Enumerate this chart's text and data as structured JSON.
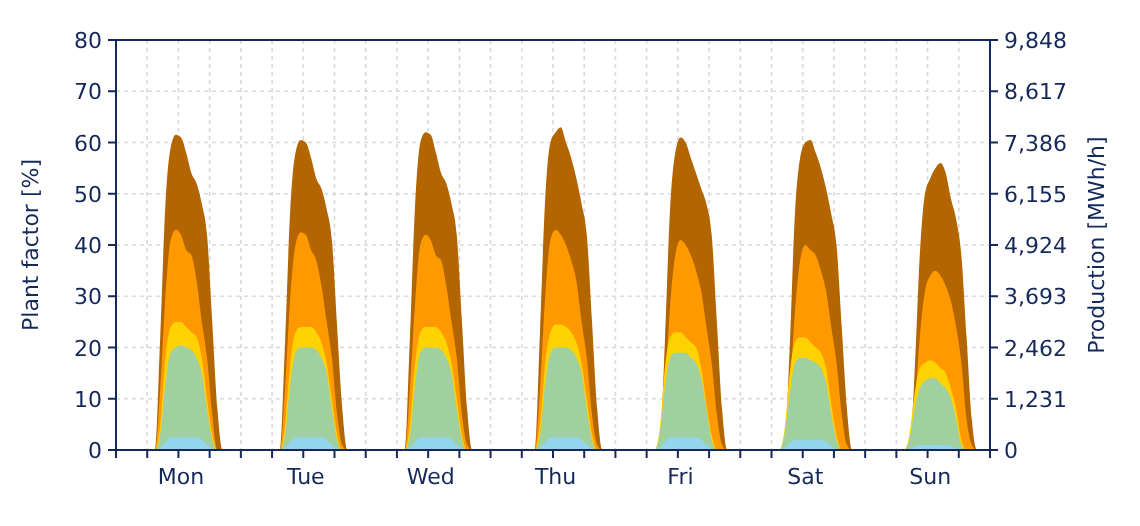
{
  "chart_data": {
    "type": "area",
    "ylabel": "Plant factor [%]",
    "y2label": "Production [MWh/h]",
    "categories": [
      null,
      null,
      null,
      null,
      null,
      null,
      null,
      null,
      null,
      null,
      null,
      null,
      "Mon",
      null,
      null,
      null,
      null,
      null,
      null,
      null,
      null,
      null,
      null,
      null,
      null,
      null,
      null,
      null,
      null,
      null,
      null,
      null,
      null,
      null,
      null,
      null,
      "Tue",
      null,
      null,
      null,
      null,
      null,
      null,
      null,
      null,
      null,
      null,
      null,
      null,
      null,
      null,
      null,
      null,
      null,
      null,
      null,
      null,
      null,
      null,
      null,
      "Wed",
      null,
      null,
      null,
      null,
      null,
      null,
      null,
      null,
      null,
      null,
      null,
      null,
      null,
      null,
      null,
      null,
      null,
      null,
      null,
      null,
      null,
      null,
      null,
      "Thu",
      null,
      null,
      null,
      null,
      null,
      null,
      null,
      null,
      null,
      null,
      null,
      null,
      null,
      null,
      null,
      null,
      null,
      null,
      null,
      null,
      null,
      null,
      null,
      "Fri",
      null,
      null,
      null,
      null,
      null,
      null,
      null,
      null,
      null,
      null,
      null,
      null,
      null,
      null,
      null,
      null,
      null,
      null,
      null,
      null,
      null,
      null,
      null,
      "Sat",
      null,
      null,
      null,
      null,
      null,
      null,
      null,
      null,
      null,
      null,
      null,
      null,
      null,
      null,
      null,
      null,
      null,
      null,
      null,
      null,
      null,
      null,
      null,
      "Sun",
      null,
      null,
      null,
      null,
      null,
      null,
      null,
      null,
      null,
      null,
      null
    ],
    "ylim": [
      0,
      80
    ],
    "yticks": [
      0,
      10,
      20,
      30,
      40,
      50,
      60,
      70,
      80
    ],
    "y2lim": [
      0,
      9848
    ],
    "y2ticks": [
      0,
      {
        "value": 1231,
        "label": "1,231"
      },
      {
        "value": 2462,
        "label": "2,462"
      },
      {
        "value": 3693,
        "label": "3,693"
      },
      {
        "value": 4924,
        "label": "4,924"
      },
      {
        "value": 6155,
        "label": "6,155"
      },
      {
        "value": 7386,
        "label": "7,386"
      },
      {
        "value": 8617,
        "label": "8,617"
      },
      {
        "value": 9848,
        "label": "9,848"
      }
    ],
    "grid": true,
    "series": [
      {
        "color": "#b36500",
        "values": [
          0,
          0,
          0,
          0,
          0,
          0,
          0,
          0,
          22,
          48,
          59,
          61.5,
          61,
          58,
          54,
          52,
          48,
          42,
          25,
          8,
          0,
          0,
          0,
          0,
          0,
          0,
          0,
          0,
          0,
          0,
          0,
          0,
          21,
          47,
          58,
          60.5,
          60,
          57,
          53,
          51,
          47,
          41,
          24,
          8,
          0,
          0,
          0,
          0,
          0,
          0,
          0,
          0,
          0,
          0,
          0,
          0,
          22,
          48,
          60,
          62,
          61.5,
          58,
          54,
          52,
          48,
          42,
          25,
          8,
          0,
          0,
          0,
          0,
          0,
          0,
          0,
          0,
          0,
          0,
          0,
          0,
          0,
          23,
          49,
          60,
          62,
          63,
          60,
          57,
          53,
          48,
          42,
          25,
          8,
          0,
          0,
          0,
          0,
          0,
          0,
          0,
          0,
          0,
          0,
          0,
          0,
          21,
          47,
          58,
          61,
          60,
          57,
          54,
          51,
          48,
          42,
          25,
          8,
          0,
          0,
          0,
          0,
          0,
          0,
          0,
          0,
          0,
          0,
          0,
          0,
          20,
          46,
          57,
          60,
          60.5,
          58,
          55,
          51,
          46,
          40,
          24,
          8,
          0,
          0,
          0,
          0,
          0,
          0,
          0,
          0,
          0,
          0,
          0,
          0,
          15,
          38,
          50,
          53,
          55,
          56,
          54,
          49,
          45,
          38,
          22,
          6,
          0,
          0,
          0
        ]
      },
      {
        "color": "#ff9900",
        "values": [
          0,
          0,
          0,
          0,
          0,
          0,
          0,
          0,
          12,
          30,
          41,
          43,
          42,
          39,
          38,
          33,
          25,
          18,
          7,
          0,
          0,
          0,
          0,
          0,
          0,
          0,
          0,
          0,
          0,
          0,
          0,
          0,
          12,
          30,
          40,
          42.5,
          42,
          39,
          37,
          32,
          25,
          18,
          7,
          1,
          0,
          0,
          0,
          0,
          0,
          0,
          0,
          0,
          0,
          0,
          0,
          0,
          12,
          29,
          40,
          42,
          41,
          38,
          37,
          32,
          25,
          18,
          7,
          1,
          0,
          0,
          0,
          0,
          0,
          0,
          0,
          0,
          0,
          0,
          0,
          0,
          0,
          12,
          30,
          41,
          43,
          42,
          40,
          37,
          33,
          25,
          18,
          7,
          1,
          0,
          0,
          0,
          0,
          0,
          0,
          0,
          0,
          0,
          0,
          0,
          0,
          11,
          28,
          38,
          41,
          40,
          38,
          35,
          31,
          24,
          17,
          7,
          1,
          0,
          0,
          0,
          0,
          0,
          0,
          0,
          0,
          0,
          0,
          0,
          0,
          11,
          27,
          37,
          40,
          39,
          38,
          35,
          31,
          24,
          17,
          7,
          1,
          0,
          0,
          0,
          0,
          0,
          0,
          0,
          0,
          0,
          0,
          0,
          0,
          8,
          22,
          31,
          34,
          35,
          34,
          32,
          29,
          24,
          17,
          6,
          1,
          0,
          0,
          0
        ]
      },
      {
        "color": "#ffd200",
        "values": [
          0,
          0,
          0,
          0,
          0,
          0,
          0,
          0,
          5,
          18,
          24,
          25,
          25,
          24,
          23,
          22,
          18,
          10,
          3,
          0,
          0,
          0,
          0,
          0,
          0,
          0,
          0,
          0,
          0,
          0,
          0,
          0,
          5,
          17,
          23,
          24,
          24,
          24,
          23,
          21,
          17,
          10,
          3,
          0,
          0,
          0,
          0,
          0,
          0,
          0,
          0,
          0,
          0,
          0,
          0,
          0,
          5,
          17,
          23,
          24,
          24,
          24,
          23,
          21,
          17,
          10,
          3,
          0,
          0,
          0,
          0,
          0,
          0,
          0,
          0,
          0,
          0,
          0,
          0,
          0,
          0,
          5,
          17,
          23,
          24.5,
          24.5,
          24,
          23,
          21,
          17,
          10,
          3,
          0,
          0,
          0,
          0,
          0,
          0,
          0,
          0,
          0,
          0,
          0,
          0,
          4,
          16,
          22,
          23,
          23,
          22,
          21,
          20,
          16,
          9,
          3,
          0,
          0,
          0,
          0,
          0,
          0,
          0,
          0,
          0,
          0,
          0,
          0,
          0,
          4,
          15,
          21,
          22,
          22,
          21,
          20,
          19,
          16,
          9,
          3,
          0,
          0,
          0,
          0,
          0,
          0,
          0,
          0,
          0,
          0,
          0,
          0,
          0,
          3,
          11,
          16,
          17,
          17.5,
          17,
          16,
          15,
          12,
          8,
          2,
          0,
          0,
          0,
          0,
          0
        ]
      },
      {
        "color": "#a0cfa0",
        "values": [
          0,
          0,
          0,
          0,
          0,
          0,
          0,
          0,
          3,
          13,
          19,
          20,
          20.5,
          20,
          19.5,
          18,
          15,
          8,
          2,
          0,
          0,
          0,
          0,
          0,
          0,
          0,
          0,
          0,
          0,
          0,
          0,
          0,
          3,
          13,
          19,
          20,
          20,
          20,
          19.5,
          18,
          15,
          8,
          2,
          0,
          0,
          0,
          0,
          0,
          0,
          0,
          0,
          0,
          0,
          0,
          0,
          0,
          3,
          13,
          19,
          20,
          20,
          20,
          19.5,
          18,
          15,
          8,
          2,
          0,
          0,
          0,
          0,
          0,
          0,
          0,
          0,
          0,
          0,
          0,
          0,
          0,
          0,
          3,
          13,
          19,
          20,
          20,
          20,
          19.5,
          18,
          15,
          8,
          2,
          0,
          0,
          0,
          0,
          0,
          0,
          0,
          0,
          0,
          0,
          0,
          0,
          3,
          12,
          18,
          19,
          19,
          19,
          18,
          17,
          14,
          8,
          2,
          0,
          0,
          0,
          0,
          0,
          0,
          0,
          0,
          0,
          0,
          0,
          0,
          0,
          3,
          11,
          17,
          18,
          18,
          17.5,
          17,
          16,
          13,
          7,
          2,
          0,
          0,
          0,
          0,
          0,
          0,
          0,
          0,
          0,
          0,
          0,
          0,
          0,
          2,
          8,
          12,
          13.5,
          14,
          14,
          13,
          12,
          10,
          6,
          1,
          0,
          0,
          0,
          0,
          0
        ]
      },
      {
        "color": "#92d5ec",
        "values": [
          0,
          0,
          0,
          0,
          0,
          0,
          0,
          0,
          0.5,
          1.5,
          2.5,
          2.5,
          2.5,
          2.5,
          2.5,
          2.5,
          2,
          1,
          0.3,
          0,
          0,
          0,
          0,
          0,
          0,
          0,
          0,
          0,
          0,
          0,
          0,
          0,
          0.5,
          1.5,
          2.5,
          2.5,
          2.5,
          2.5,
          2.5,
          2.5,
          2,
          1,
          0.3,
          0,
          0,
          0,
          0,
          0,
          0,
          0,
          0,
          0,
          0,
          0,
          0,
          0,
          0.5,
          1.5,
          2.5,
          2.5,
          2.5,
          2.5,
          2.5,
          2.5,
          2,
          1,
          0.3,
          0,
          0,
          0,
          0,
          0,
          0,
          0,
          0,
          0,
          0,
          0,
          0,
          0,
          0,
          0.5,
          1.5,
          2.5,
          2.5,
          2.5,
          2.5,
          2.5,
          2.5,
          2,
          1,
          0.3,
          0,
          0,
          0,
          0,
          0,
          0,
          0,
          0,
          0,
          0,
          0,
          0,
          0.5,
          1.5,
          2.5,
          2.5,
          2.5,
          2.5,
          2.5,
          2.5,
          2,
          1,
          0.3,
          0,
          0,
          0,
          0,
          0,
          0,
          0,
          0,
          0,
          0,
          0,
          0,
          0,
          0.4,
          1.2,
          2,
          2,
          2,
          2,
          2,
          2,
          1.6,
          0.8,
          0.2,
          0,
          0,
          0,
          0,
          0,
          0,
          0,
          0,
          0,
          0,
          0,
          0,
          0,
          0.2,
          0.6,
          1,
          1,
          1,
          1,
          1,
          1,
          0.8,
          0.4,
          0.1,
          0,
          0,
          0,
          0,
          0
        ]
      }
    ]
  }
}
